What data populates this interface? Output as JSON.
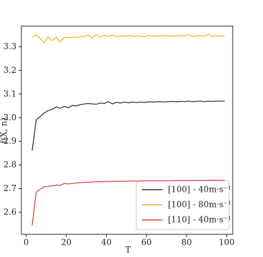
{
  "chart_data": {
    "type": "line",
    "xlabel": "T",
    "ylabel": "f(X, n)",
    "x": [
      3,
      5,
      7,
      9,
      11,
      13,
      15,
      17,
      19,
      21,
      23,
      25,
      27,
      29,
      31,
      33,
      35,
      37,
      39,
      41,
      43,
      45,
      47,
      49,
      51,
      53,
      55,
      57,
      59,
      61,
      63,
      65,
      67,
      69,
      71,
      73,
      75,
      77,
      79,
      81,
      83,
      85,
      87,
      89,
      91,
      93,
      95,
      97,
      99
    ],
    "xlim": [
      -2.4,
      103
    ],
    "xticks": [
      0,
      20,
      40,
      60,
      80,
      100
    ],
    "ylim": [
      2.507,
      3.387
    ],
    "yticks": [
      2.6,
      2.7,
      2.8,
      2.9,
      {
        "value": 3,
        "label": "3.0"
      },
      3.1,
      3.2,
      3.3
    ],
    "legend": "lower right",
    "series": [
      {
        "name": "[100] - 40m·s⁻¹",
        "color": "#333333",
        "values": [
          2.86,
          2.99,
          3.005,
          3.02,
          3.03,
          3.035,
          3.045,
          3.04,
          3.048,
          3.042,
          3.052,
          3.05,
          3.055,
          3.058,
          3.06,
          3.058,
          3.057,
          3.062,
          3.06,
          3.068,
          3.058,
          3.065,
          3.062,
          3.066,
          3.063,
          3.066,
          3.064,
          3.066,
          3.064,
          3.067,
          3.066,
          3.067,
          3.068,
          3.066,
          3.068,
          3.069,
          3.067,
          3.069,
          3.068,
          3.07,
          3.068,
          3.069,
          3.07,
          3.068,
          3.07,
          3.069,
          3.07,
          3.07,
          3.07
        ]
      },
      {
        "name": "[100] - 80m·s⁻¹",
        "color": "#f0b429",
        "values": [
          3.34,
          3.35,
          3.335,
          3.318,
          3.342,
          3.326,
          3.34,
          3.32,
          3.34,
          3.338,
          3.34,
          3.338,
          3.342,
          3.344,
          3.35,
          3.336,
          3.352,
          3.34,
          3.348,
          3.344,
          3.35,
          3.342,
          3.346,
          3.344,
          3.348,
          3.344,
          3.346,
          3.345,
          3.342,
          3.348,
          3.344,
          3.346,
          3.345,
          3.348,
          3.344,
          3.346,
          3.345,
          3.348,
          3.346,
          3.35,
          3.344,
          3.346,
          3.347,
          3.345,
          3.352,
          3.344,
          3.346,
          3.345,
          3.346
        ]
      },
      {
        "name": "[110] - 40m·s⁻¹",
        "color": "#d9443e",
        "values": [
          2.545,
          2.685,
          2.698,
          2.708,
          2.71,
          2.712,
          2.715,
          2.714,
          2.722,
          2.72,
          2.722,
          2.724,
          2.726,
          2.726,
          2.727,
          2.728,
          2.73,
          2.729,
          2.731,
          2.73,
          2.731,
          2.731,
          2.732,
          2.731,
          2.732,
          2.733,
          2.732,
          2.733,
          2.733,
          2.734,
          2.733,
          2.734,
          2.733,
          2.734,
          2.734,
          2.734,
          2.735,
          2.734,
          2.735,
          2.734,
          2.735,
          2.735,
          2.735,
          2.735,
          2.735,
          2.736,
          2.735,
          2.735,
          2.736
        ]
      }
    ]
  }
}
